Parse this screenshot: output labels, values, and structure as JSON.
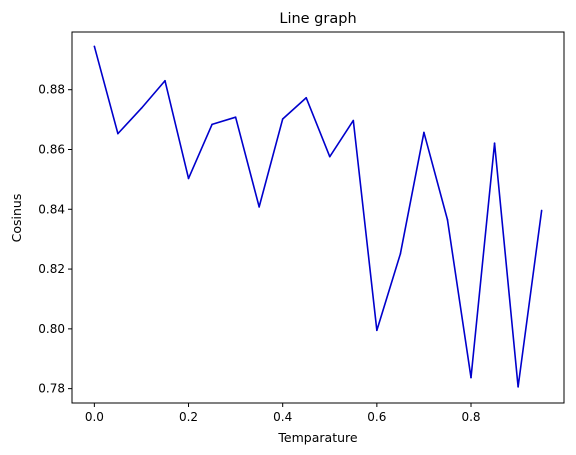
{
  "chart_data": {
    "type": "line",
    "title": "Line graph",
    "xlabel": "Temparature",
    "ylabel": "Cosinus",
    "xlim": [
      -0.0475,
      0.9975
    ],
    "ylim": [
      0.7752,
      0.8993
    ],
    "xticks": [
      0.0,
      0.2,
      0.4,
      0.6,
      0.8
    ],
    "xtick_labels": [
      "0.0",
      "0.2",
      "0.4",
      "0.6",
      "0.8"
    ],
    "yticks": [
      0.78,
      0.8,
      0.82,
      0.84,
      0.86,
      0.88
    ],
    "ytick_labels": [
      "0.78",
      "0.80",
      "0.82",
      "0.84",
      "0.86",
      "0.88"
    ],
    "grid": false,
    "series": [
      {
        "color": "#0000cc",
        "x": [
          0.0,
          0.05,
          0.1,
          0.15,
          0.2,
          0.25,
          0.3,
          0.35,
          0.4,
          0.45,
          0.5,
          0.55,
          0.6,
          0.65,
          0.7,
          0.75,
          0.8,
          0.85,
          0.9,
          0.95
        ],
        "y": [
          0.8945,
          0.8653,
          0.8738,
          0.883,
          0.8503,
          0.8684,
          0.8708,
          0.8408,
          0.8702,
          0.8773,
          0.8576,
          0.8697,
          0.7995,
          0.8251,
          0.8657,
          0.8365,
          0.7837,
          0.8621,
          0.7806,
          0.8396
        ]
      }
    ]
  }
}
